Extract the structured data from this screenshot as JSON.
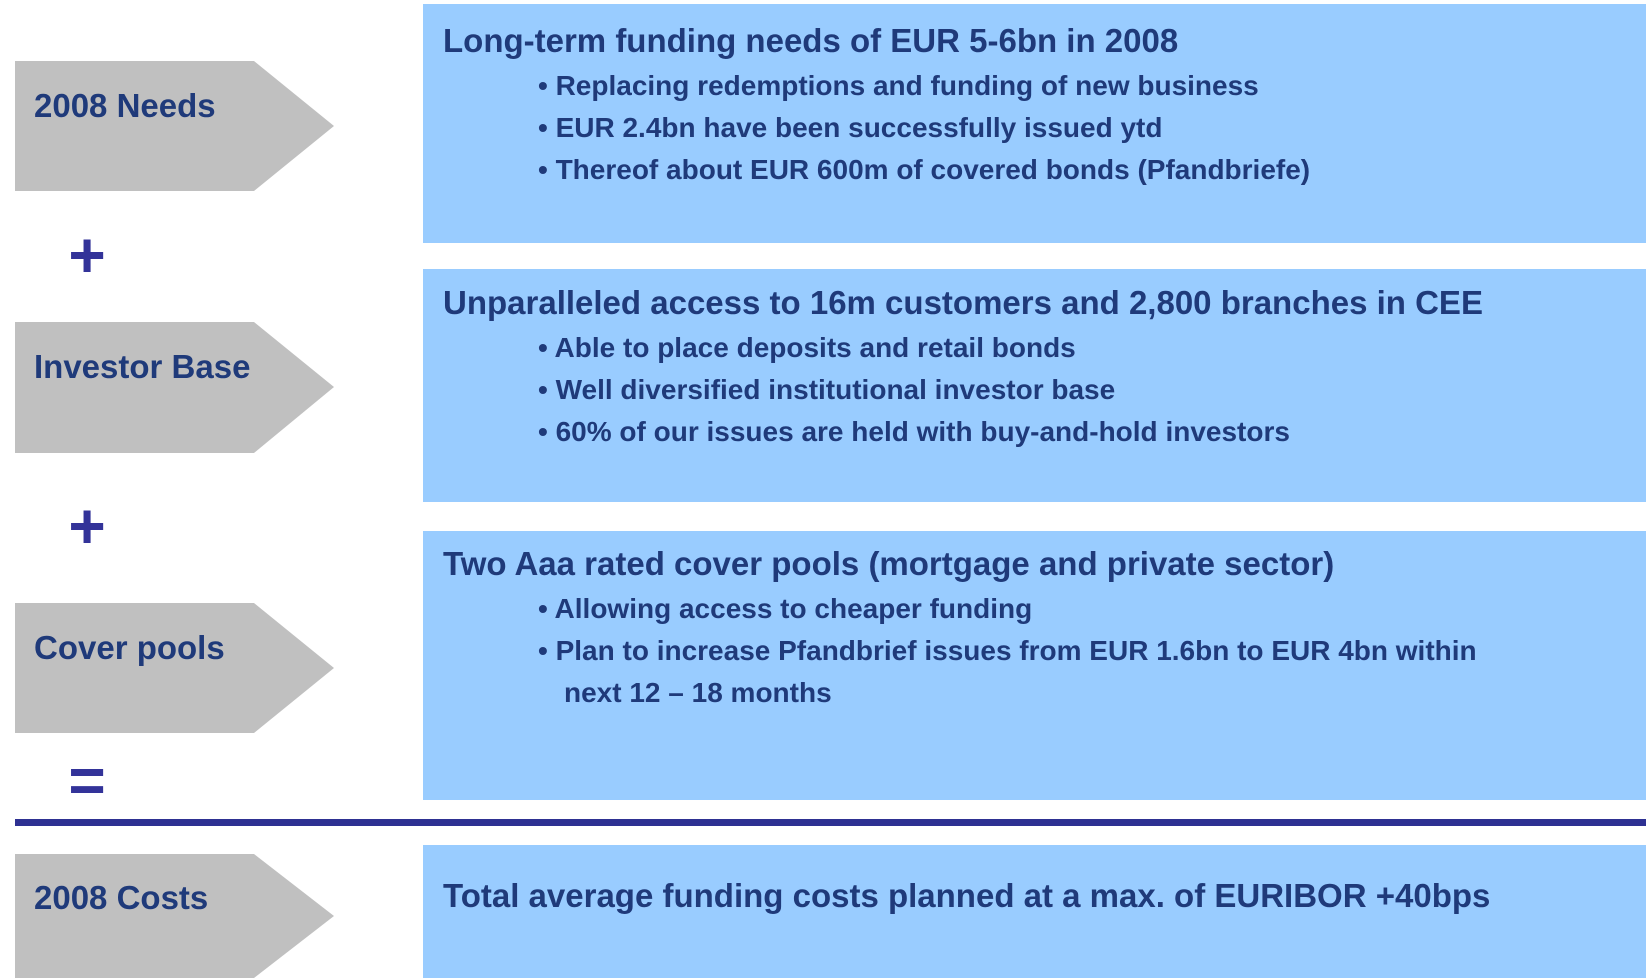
{
  "rows": [
    {
      "label": "2008 Needs",
      "heading": "Long-term funding needs of EUR 5-6bn in 2008",
      "bullets": [
        "• Replacing redemptions and funding of new business",
        "• EUR 2.4bn have been successfully issued ytd",
        "• Thereof about EUR 600m of covered bonds (Pfandbriefe)"
      ]
    },
    {
      "label": "Investor Base",
      "heading": "Unparalleled access to 16m customers and 2,800 branches in CEE",
      "bullets": [
        "• Able to place deposits and retail bonds",
        "• Well diversified institutional investor base",
        "• 60% of our issues are held with buy-and-hold investors"
      ]
    },
    {
      "label": "Cover pools",
      "heading": "Two Aaa rated cover pools (mortgage and private sector)",
      "bullets": [
        "• Allowing access to cheaper funding",
        "• Plan to increase Pfandbrief issues from EUR 1.6bn to EUR 4bn within next 12 – 18 months"
      ]
    },
    {
      "label": "2008 Costs",
      "heading": "Total average funding costs planned at a max. of EURIBOR +40bps",
      "bullets": []
    }
  ],
  "operators": [
    "+",
    "+",
    "="
  ]
}
